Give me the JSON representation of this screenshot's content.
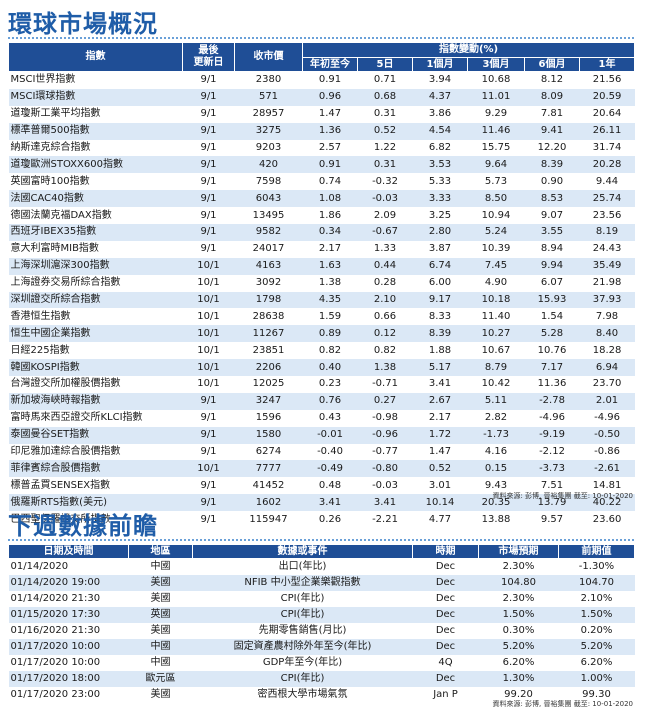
{
  "market": {
    "title": "環球市場概況",
    "headers": {
      "index": "指數",
      "updated": "最後\n更新日",
      "close": "收市價",
      "change_group": "指數變動(%)",
      "ytd": "年初至今",
      "d5": "5日",
      "m1": "1個月",
      "m3": "3個月",
      "m6": "6個月",
      "y1": "1年"
    },
    "rows": [
      [
        "MSCI世界指數",
        "9/1",
        "2380",
        "0.91",
        "0.71",
        "3.94",
        "10.68",
        "8.12",
        "21.56"
      ],
      [
        "MSCI環球指數",
        "9/1",
        "571",
        "0.96",
        "0.68",
        "4.37",
        "11.01",
        "8.09",
        "20.59"
      ],
      [
        "道瓊斯工業平均指數",
        "9/1",
        "28957",
        "1.47",
        "0.31",
        "3.86",
        "9.29",
        "7.81",
        "20.64"
      ],
      [
        "標準普爾500指數",
        "9/1",
        "3275",
        "1.36",
        "0.52",
        "4.54",
        "11.46",
        "9.41",
        "26.11"
      ],
      [
        "納斯達克綜合指數",
        "9/1",
        "9203",
        "2.57",
        "1.22",
        "6.82",
        "15.75",
        "12.20",
        "31.74"
      ],
      [
        "道瓊歐洲STOXX600指數",
        "9/1",
        "420",
        "0.91",
        "0.31",
        "3.53",
        "9.64",
        "8.39",
        "20.28"
      ],
      [
        "英國富時100指數",
        "9/1",
        "7598",
        "0.74",
        "-0.32",
        "5.33",
        "5.73",
        "0.90",
        "9.44"
      ],
      [
        "法國CAC40指數",
        "9/1",
        "6043",
        "1.08",
        "-0.03",
        "3.33",
        "8.50",
        "8.53",
        "25.74"
      ],
      [
        "德國法蘭克福DAX指數",
        "9/1",
        "13495",
        "1.86",
        "2.09",
        "3.25",
        "10.94",
        "9.07",
        "23.56"
      ],
      [
        "西班牙IBEX35指數",
        "9/1",
        "9582",
        "0.34",
        "-0.67",
        "2.80",
        "5.24",
        "3.55",
        "8.19"
      ],
      [
        "意大利富時MIB指數",
        "9/1",
        "24017",
        "2.17",
        "1.33",
        "3.87",
        "10.39",
        "8.94",
        "24.43"
      ],
      [
        "上海深圳滬深300指數",
        "10/1",
        "4163",
        "1.63",
        "0.44",
        "6.74",
        "7.45",
        "9.94",
        "35.49"
      ],
      [
        "上海證券交易所綜合指數",
        "10/1",
        "3092",
        "1.38",
        "0.28",
        "6.00",
        "4.90",
        "6.07",
        "21.98"
      ],
      [
        "深圳證交所綜合指數",
        "10/1",
        "1798",
        "4.35",
        "2.10",
        "9.17",
        "10.18",
        "15.93",
        "37.93"
      ],
      [
        "香港恒生指數",
        "10/1",
        "28638",
        "1.59",
        "0.66",
        "8.33",
        "11.40",
        "1.54",
        "7.98"
      ],
      [
        "恒生中國企業指數",
        "10/1",
        "11267",
        "0.89",
        "0.12",
        "8.39",
        "10.27",
        "5.28",
        "8.40"
      ],
      [
        "日經225指數",
        "10/1",
        "23851",
        "0.82",
        "0.82",
        "1.88",
        "10.67",
        "10.76",
        "18.28"
      ],
      [
        "韓國KOSPI指數",
        "10/1",
        "2206",
        "0.40",
        "1.38",
        "5.17",
        "8.79",
        "7.17",
        "6.94"
      ],
      [
        "台灣證交所加權股價指數",
        "10/1",
        "12025",
        "0.23",
        "-0.71",
        "3.41",
        "10.42",
        "11.36",
        "23.70"
      ],
      [
        "新加坡海峽時報指數",
        "9/1",
        "3247",
        "0.76",
        "0.27",
        "2.67",
        "5.11",
        "-2.78",
        "2.01"
      ],
      [
        "富時馬來西亞證交所KLCI指數",
        "9/1",
        "1596",
        "0.43",
        "-0.98",
        "2.17",
        "2.82",
        "-4.96",
        "-4.96"
      ],
      [
        "泰國曼谷SET指數",
        "9/1",
        "1580",
        "-0.01",
        "-0.96",
        "1.72",
        "-1.73",
        "-9.19",
        "-0.50"
      ],
      [
        "印尼雅加達綜合股價指數",
        "9/1",
        "6274",
        "-0.40",
        "-0.77",
        "1.47",
        "4.16",
        "-2.12",
        "-0.86"
      ],
      [
        "菲律賓綜合股價指數",
        "10/1",
        "7777",
        "-0.49",
        "-0.80",
        "0.52",
        "0.15",
        "-3.73",
        "-2.61"
      ],
      [
        "標普孟買SENSEX指數",
        "9/1",
        "41452",
        "0.48",
        "-0.03",
        "3.01",
        "9.43",
        "7.51",
        "14.81"
      ],
      [
        "俄羅斯RTS指數(美元)",
        "9/1",
        "1602",
        "3.41",
        "3.41",
        "10.14",
        "20.35",
        "13.79",
        "40.22"
      ],
      [
        "巴西聖保羅證交所指數",
        "9/1",
        "115947",
        "0.26",
        "-2.21",
        "4.77",
        "13.88",
        "9.57",
        "23.60"
      ]
    ],
    "source": "資料來源: 彭博, 晉裕集團  截至: 10-01-2020"
  },
  "events": {
    "title": "下週數據前瞻",
    "headers": {
      "datetime": "日期及時間",
      "region": "地區",
      "event": "數據或事件",
      "period": "時期",
      "forecast": "市場預期",
      "previous": "前期值"
    },
    "rows": [
      [
        "01/14/2020",
        "中國",
        "出口(年比)",
        "Dec",
        "2.30%",
        "-1.30%"
      ],
      [
        "01/14/2020 19:00",
        "美國",
        "NFIB 中小型企業樂觀指數",
        "Dec",
        "104.80",
        "104.70"
      ],
      [
        "01/14/2020 21:30",
        "美國",
        "CPI(年比)",
        "Dec",
        "2.30%",
        "2.10%"
      ],
      [
        "01/15/2020 17:30",
        "英國",
        "CPI(年比)",
        "Dec",
        "1.50%",
        "1.50%"
      ],
      [
        "01/16/2020 21:30",
        "美國",
        "先期零售銷售(月比)",
        "Dec",
        "0.30%",
        "0.20%"
      ],
      [
        "01/17/2020 10:00",
        "中國",
        "固定資產農村除外年至今(年比)",
        "Dec",
        "5.20%",
        "5.20%"
      ],
      [
        "01/17/2020 10:00",
        "中國",
        "GDP年至今(年比)",
        "4Q",
        "6.20%",
        "6.20%"
      ],
      [
        "01/17/2020 18:00",
        "歐元區",
        "CPI(年比)",
        "Dec",
        "1.30%",
        "1.00%"
      ],
      [
        "01/17/2020 23:00",
        "美國",
        "密西根大學市場氣氛",
        "Jan P",
        "99.20",
        "99.30"
      ]
    ],
    "source": "資料來源: 彭博, 晉裕集團  截至: 10-01-2020"
  }
}
